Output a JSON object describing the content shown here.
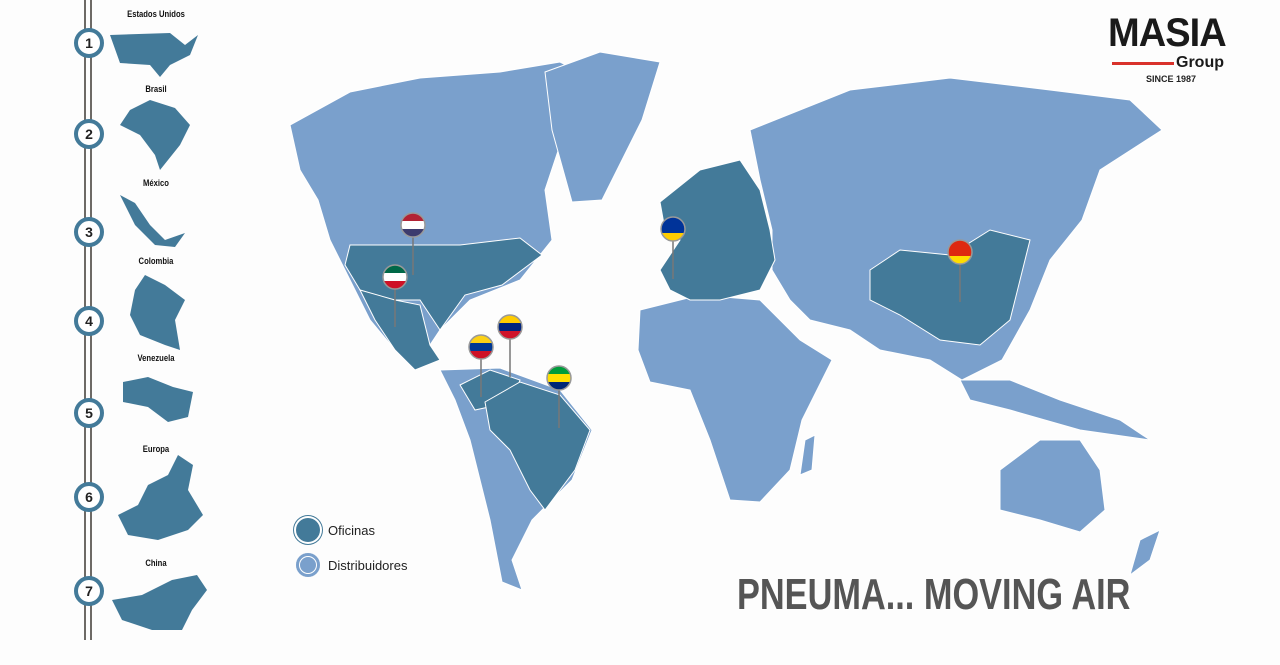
{
  "timeline": [
    {
      "number": "1",
      "country": "Estados Unidos"
    },
    {
      "number": "2",
      "country": "Brasil"
    },
    {
      "number": "3",
      "country": "México"
    },
    {
      "number": "4",
      "country": "Colombia"
    },
    {
      "number": "5",
      "country": "Venezuela"
    },
    {
      "number": "6",
      "country": "Europa"
    },
    {
      "number": "7",
      "country": "China"
    }
  ],
  "logo": {
    "name": "MASIA",
    "sub": "Group",
    "since": "SINCE 1987"
  },
  "legend": {
    "offices": "Oficinas",
    "distributors": "Distribuidores"
  },
  "tagline": "PNEUMA... MOVING AIR",
  "colors": {
    "offices": "#437a99",
    "distributors": "#7aa0cc",
    "accent": "#d9322b"
  },
  "pins": [
    "us-flag",
    "mexico-flag",
    "colombia-flag",
    "venezuela-flag",
    "brazil-flag",
    "eu-flag",
    "china-flag"
  ]
}
